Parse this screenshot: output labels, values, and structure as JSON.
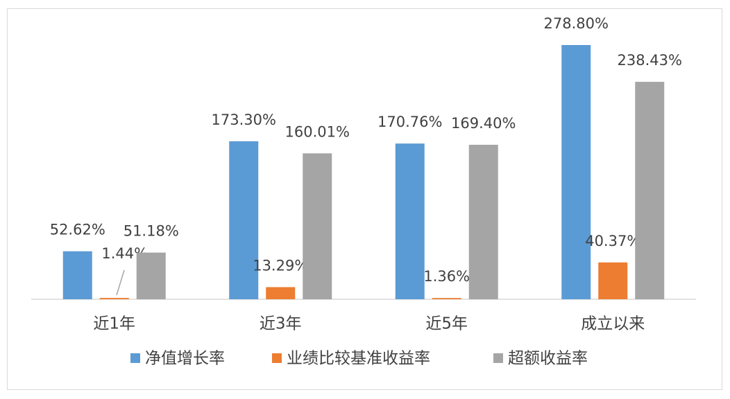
{
  "chart_data": {
    "type": "bar",
    "categories": [
      "近1年",
      "近3年",
      "近5年",
      "成立以来"
    ],
    "series": [
      {
        "name": "净值增长率",
        "color": "#5b9bd5",
        "values": [
          52.62,
          173.3,
          170.76,
          278.8
        ],
        "value_labels": [
          "52.62%",
          "173.30%",
          "170.76%",
          "278.80%"
        ]
      },
      {
        "name": "业绩比较基准收益率",
        "color": "#ed7d31",
        "values": [
          1.44,
          13.29,
          1.36,
          40.37
        ],
        "value_labels": [
          "1.44%",
          "13.29%",
          "1.36%",
          "40.37%"
        ]
      },
      {
        "name": "超额收益率",
        "color": "#a5a5a5",
        "values": [
          51.18,
          160.01,
          169.4,
          238.43
        ],
        "value_labels": [
          "51.18%",
          "160.01%",
          "169.40%",
          "238.43%"
        ]
      }
    ],
    "legend": "bottom"
  }
}
